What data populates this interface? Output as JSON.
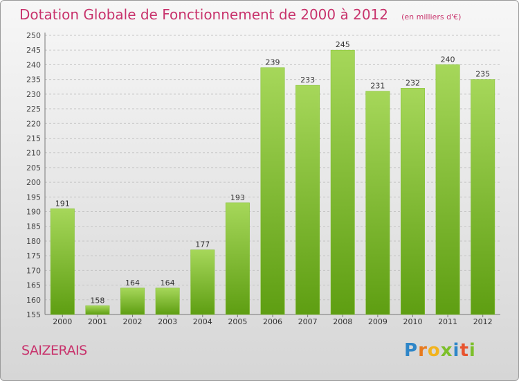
{
  "header": {
    "title": "Dotation Globale de Fonctionnement de 2000 à 2012",
    "unit_note": "(en milliers d'€)"
  },
  "footer": {
    "commune": "SAIZERAIS",
    "logo_text": "Proxiti"
  },
  "colors": {
    "title": "#c8336c",
    "bar_light": "#a6d75a",
    "bar_dark": "#5e9e12",
    "grid": "#c4c4c4"
  },
  "chart_data": {
    "type": "bar",
    "title": "Dotation Globale de Fonctionnement de 2000 à 2012",
    "subtitle": "(en milliers d'€)",
    "xlabel": "",
    "ylabel": "",
    "categories": [
      "2000",
      "2001",
      "2002",
      "2003",
      "2004",
      "2005",
      "2006",
      "2007",
      "2008",
      "2009",
      "2010",
      "2011",
      "2012"
    ],
    "values": [
      191,
      158,
      164,
      164,
      177,
      193,
      239,
      233,
      245,
      231,
      232,
      240,
      235
    ],
    "ylim": [
      155,
      250
    ],
    "yticks": [
      155,
      160,
      165,
      170,
      175,
      180,
      185,
      190,
      195,
      200,
      205,
      210,
      215,
      220,
      225,
      230,
      235,
      240,
      245,
      250
    ],
    "grid": true,
    "legend": "none"
  }
}
